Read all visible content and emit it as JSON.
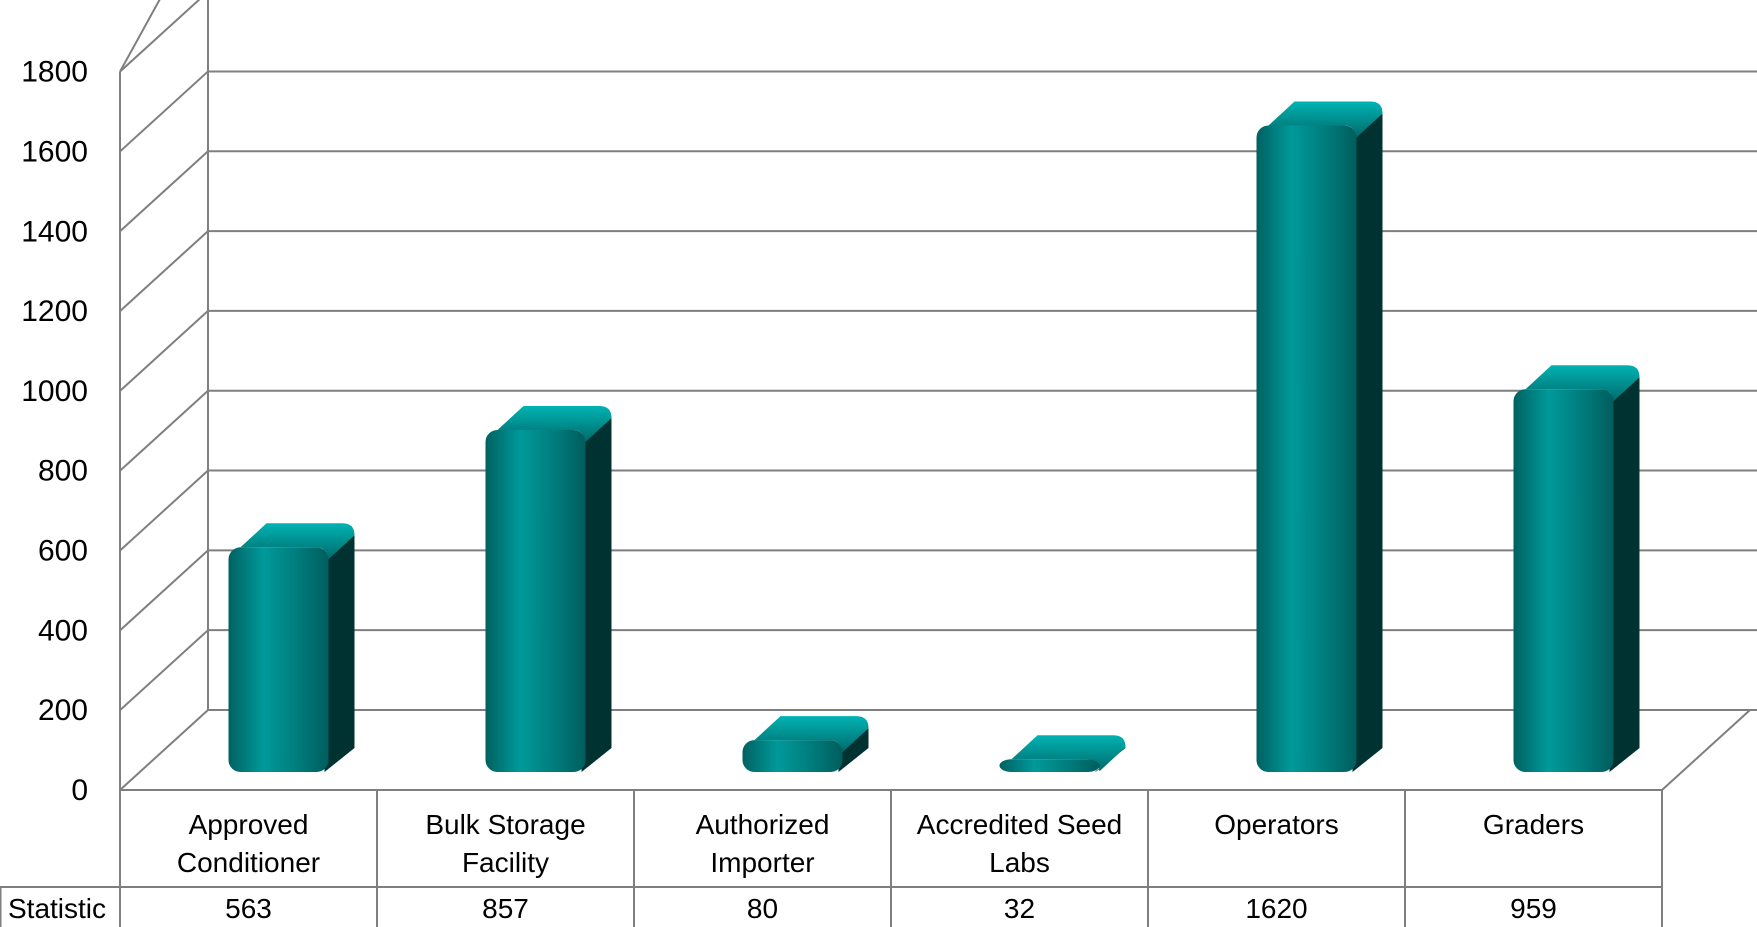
{
  "chart_data": {
    "type": "bar",
    "title": "",
    "xlabel": "",
    "ylabel": "",
    "ylim": [
      0,
      1800
    ],
    "yticks": [
      0,
      200,
      400,
      600,
      800,
      1000,
      1200,
      1400,
      1600,
      1800
    ],
    "grid": true,
    "style": "3d-cylinder-bars",
    "categories": [
      "Approved\nConditioner",
      "Bulk Storage\nFacility",
      "Authorized\nImporter",
      "Accredited Seed\nLabs",
      "Operators",
      "Graders"
    ],
    "series": [
      {
        "name": "Statistic",
        "values": [
          563,
          857,
          80,
          32,
          1620,
          959
        ]
      }
    ],
    "data_table": {
      "row_label": "Statistic",
      "position": "below-axis"
    },
    "colors": {
      "bar_front": "#007b7b",
      "bar_side": "#003232",
      "bar_top": "#00a0a0",
      "grid": "#7f7f7f"
    }
  }
}
